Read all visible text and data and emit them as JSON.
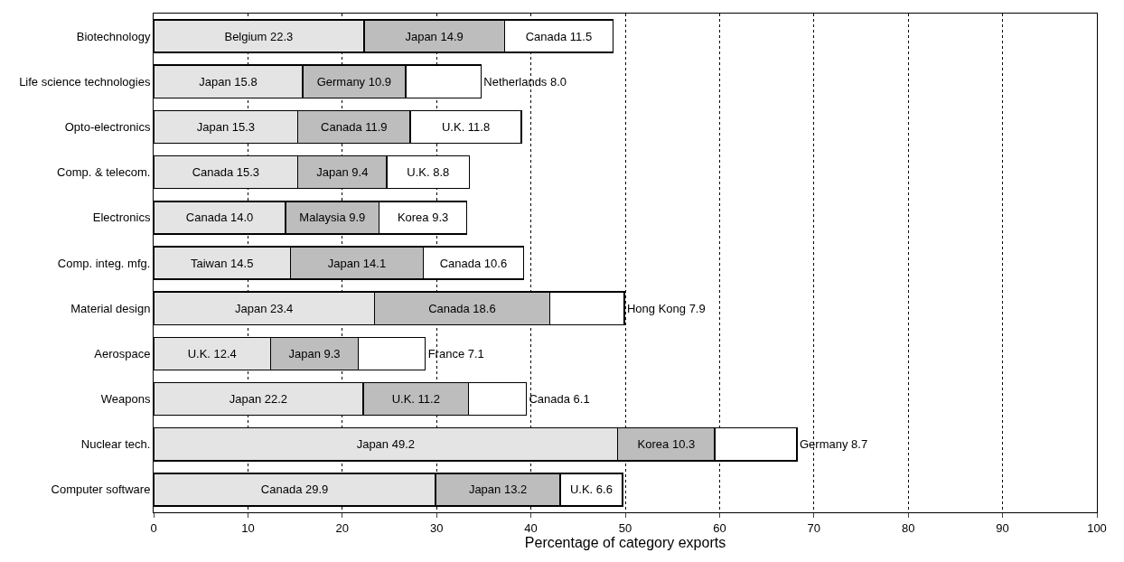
{
  "chart_data": {
    "type": "bar",
    "orientation": "horizontal",
    "stacked": true,
    "xlabel": "Percentage of category exports",
    "categories": [
      "Biotechnology",
      "Life science technologies",
      "Opto-electronics",
      "Comp. & telecom.",
      "Electronics",
      "Comp. integ. mfg.",
      "Material design",
      "Aerospace",
      "Weapons",
      "Nuclear tech.",
      "Computer software"
    ],
    "series": [
      {
        "color": "#e4e4e4",
        "values": [
          22.3,
          15.8,
          15.3,
          15.3,
          14.0,
          14.5,
          23.4,
          12.4,
          22.2,
          49.2,
          29.9
        ],
        "value_labels": [
          "Belgium 22.3",
          "Japan 15.8",
          "Japan 15.3",
          "Canada 15.3",
          "Canada 14.0",
          "Taiwan 14.5",
          "Japan 23.4",
          "U.K. 12.4",
          "Japan 22.2",
          "Japan 49.2",
          "Canada 29.9"
        ]
      },
      {
        "color": "#bdbdbd",
        "values": [
          14.9,
          10.9,
          11.9,
          9.4,
          9.9,
          14.1,
          18.6,
          9.3,
          11.2,
          10.3,
          13.2
        ],
        "value_labels": [
          "Japan 14.9",
          "Germany 10.9",
          "Canada 11.9",
          "Japan 9.4",
          "Malaysia 9.9",
          "Japan 14.1",
          "Canada 18.6",
          "Japan 9.3",
          "U.K. 11.2",
          "Korea 10.3",
          "Japan 13.2"
        ]
      },
      {
        "color": "#ffffff",
        "values": [
          11.5,
          8.0,
          11.8,
          8.8,
          9.3,
          10.6,
          7.9,
          7.1,
          6.1,
          8.7,
          6.6
        ],
        "value_labels": [
          "Canada 11.5",
          "Netherlands 8.0",
          "U.K. 11.8",
          "U.K. 8.8",
          "Korea 9.3",
          "Canada 10.6",
          "Hong Kong 7.9",
          "France 7.1",
          "Canada 6.1",
          "Germany 8.7",
          "U.K. 6.6"
        ]
      }
    ],
    "xlim": [
      0,
      100
    ],
    "xticks": [
      0,
      10,
      20,
      30,
      40,
      50,
      60,
      70,
      80,
      90,
      100
    ],
    "grid": "x"
  }
}
